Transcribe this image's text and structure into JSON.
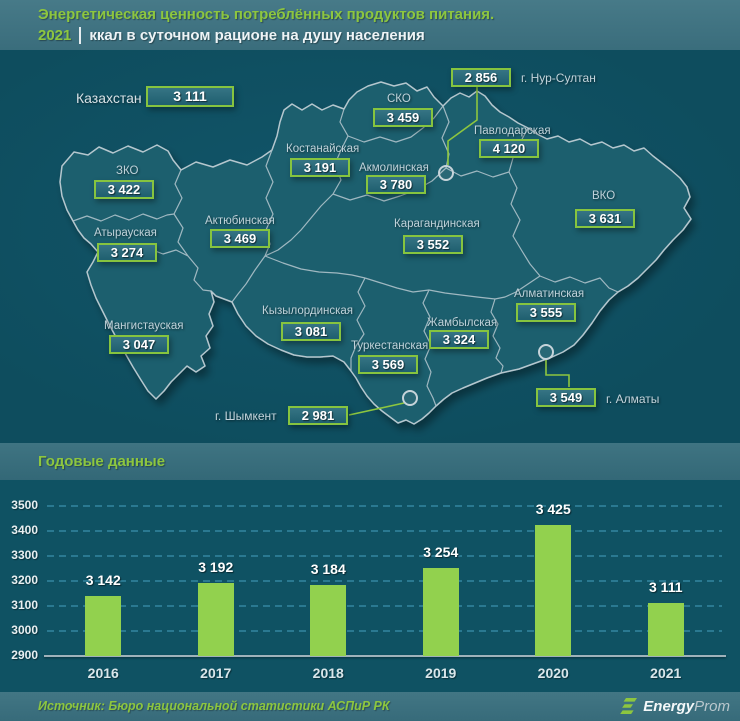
{
  "header": {
    "title": "Энергетическая ценность потреблённых продуктов питания.",
    "year": "2021",
    "subtitle": "ккал в суточном рационе на душу населения"
  },
  "map": {
    "country": {
      "id": "kazakhstan",
      "label": "Казахстан",
      "value": "3 111"
    },
    "regions": [
      {
        "id": "sko",
        "label": "СКО",
        "value": "3 459"
      },
      {
        "id": "pavlodar",
        "label": "Павлодарская",
        "value": "4 120"
      },
      {
        "id": "kostanay",
        "label": "Костанайская",
        "value": "3 191"
      },
      {
        "id": "akmola",
        "label": "Акмолинская",
        "value": "3 780"
      },
      {
        "id": "zko",
        "label": "ЗКО",
        "value": "3 422"
      },
      {
        "id": "vko",
        "label": "ВКО",
        "value": "3 631"
      },
      {
        "id": "atyrau",
        "label": "Атырауская",
        "value": "3 274"
      },
      {
        "id": "aktobe",
        "label": "Актюбинская",
        "value": "3 469"
      },
      {
        "id": "karaganda",
        "label": "Карагандинская",
        "value": "3 552"
      },
      {
        "id": "kyzylorda",
        "label": "Кызылординская",
        "value": "3 081"
      },
      {
        "id": "zhambyl",
        "label": "Жамбылская",
        "value": "3 324"
      },
      {
        "id": "mangystau",
        "label": "Мангистауская",
        "value": "3 047"
      },
      {
        "id": "turkestan",
        "label": "Туркестанская",
        "value": "3 569"
      },
      {
        "id": "almaty_region",
        "label": "Алматинская",
        "value": "3 555"
      }
    ],
    "cities": [
      {
        "id": "nur_sultan",
        "label": "г. Нур-Султан",
        "value": "2 856"
      },
      {
        "id": "almaty",
        "label": "г. Алматы",
        "value": "3 549"
      },
      {
        "id": "shymkent",
        "label": "г. Шымкент",
        "value": "2 981"
      }
    ]
  },
  "section": {
    "title": "Годовые данные"
  },
  "chart_data": {
    "type": "bar",
    "title": "Годовые данные",
    "categories": [
      "2016",
      "2017",
      "2018",
      "2019",
      "2020",
      "2021"
    ],
    "values": [
      3142,
      3192,
      3184,
      3254,
      3425,
      3111
    ],
    "value_labels": [
      "3 142",
      "3 192",
      "3 184",
      "3 254",
      "3 425",
      "3 111"
    ],
    "xlabel": "",
    "ylabel": "",
    "ylim": [
      2900,
      3500
    ],
    "yticks": [
      2900,
      3000,
      3100,
      3200,
      3300,
      3400,
      3500
    ],
    "ytick_labels": [
      "2900",
      "3000",
      "3100",
      "3200",
      "3300",
      "3400",
      "3500"
    ],
    "grid": "dashed-horizontal",
    "legend": "none",
    "bar_color": "#92d14e"
  },
  "footer": {
    "source": "Источник: Бюро национальной статистики АСПиР РК",
    "logo_bold": "Energy",
    "logo_light": "Prom"
  },
  "colors": {
    "accent_green": "#8dc63f",
    "bar_green": "#92d14e",
    "background": "#0f5263",
    "strip_teal": "#3e7283",
    "land": "#1a5e6e",
    "map_border": "#b5c7ce",
    "value_text": "#ffffff",
    "label_text": "#bfd2da"
  }
}
